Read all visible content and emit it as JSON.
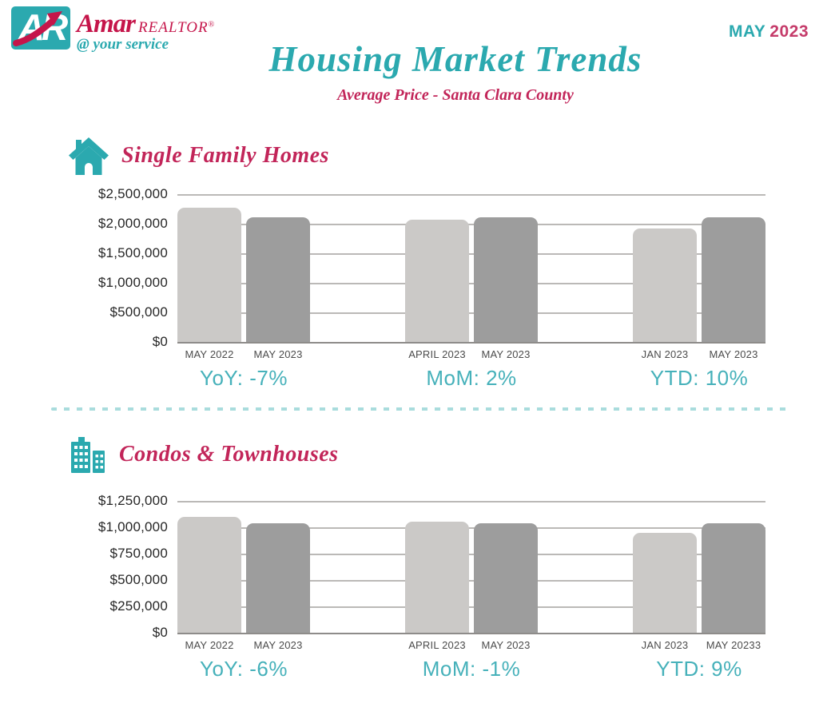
{
  "header": {
    "logo": {
      "mark": "amar-realtor-AR-monogram",
      "brand": "Amar",
      "brand_suffix": "REALTOR",
      "registered": "®",
      "tagline": "@ your service"
    },
    "issue_month": "MAY",
    "issue_year": "2023",
    "title": "Housing Market Trends",
    "subtitle": "Average Price - Santa Clara County"
  },
  "colors": {
    "teal": "#2BA9AF",
    "teal_light": "#46B1BA",
    "crimson": "#C22559",
    "logo_red": "#C5154A",
    "year_pink": "#C53B6A",
    "bar_light": "#CBC9C7",
    "bar_dark": "#9D9D9D",
    "gridline": "#BBB9B7",
    "baseline": "#8E8C8A",
    "axis_text": "#4C4C4C",
    "divider": "#A9DCDD"
  },
  "chart_data": [
    {
      "type": "bar",
      "title": "Single Family Homes",
      "icon": "house-icon",
      "ylabel": "Average Price",
      "ylim": [
        0,
        2500000
      ],
      "grid": true,
      "yticks": [
        "$2,500,000",
        "$2,000,000",
        "$1,500,000",
        "$1,000,000",
        "$500,000",
        "$0"
      ],
      "groups": [
        {
          "bars": [
            {
              "label": "MAY 2022",
              "value": 2270000,
              "shade": "light"
            },
            {
              "label": "MAY 2023",
              "value": 2110000,
              "shade": "dark"
            }
          ],
          "change": "YoY: -7%"
        },
        {
          "bars": [
            {
              "label": "APRIL 2023",
              "value": 2070000,
              "shade": "light"
            },
            {
              "label": "MAY 2023",
              "value": 2110000,
              "shade": "dark"
            }
          ],
          "change": "MoM: 2%"
        },
        {
          "bars": [
            {
              "label": "JAN 2023",
              "value": 1920000,
              "shade": "light"
            },
            {
              "label": "MAY 2023",
              "value": 2110000,
              "shade": "dark"
            }
          ],
          "change": "YTD: 10%"
        }
      ]
    },
    {
      "type": "bar",
      "title": "Condos & Townhouses",
      "icon": "buildings-icon",
      "ylabel": "Average Price",
      "ylim": [
        0,
        1250000
      ],
      "grid": true,
      "yticks": [
        "$1,250,000",
        "$1,000,000",
        "$750,000",
        "$500,000",
        "$250,000",
        "$0"
      ],
      "groups": [
        {
          "bars": [
            {
              "label": "MAY 2022",
              "value": 1100000,
              "shade": "light"
            },
            {
              "label": "MAY 2023",
              "value": 1040000,
              "shade": "dark"
            }
          ],
          "change": "YoY: -6%"
        },
        {
          "bars": [
            {
              "label": "APRIL 2023",
              "value": 1050000,
              "shade": "light"
            },
            {
              "label": "MAY 2023",
              "value": 1040000,
              "shade": "dark"
            }
          ],
          "change": "MoM: -1%"
        },
        {
          "bars": [
            {
              "label": "JAN 2023",
              "value": 950000,
              "shade": "light"
            },
            {
              "label": "MAY 20233",
              "value": 1040000,
              "shade": "dark"
            }
          ],
          "change": "YTD: 9%"
        }
      ]
    }
  ]
}
